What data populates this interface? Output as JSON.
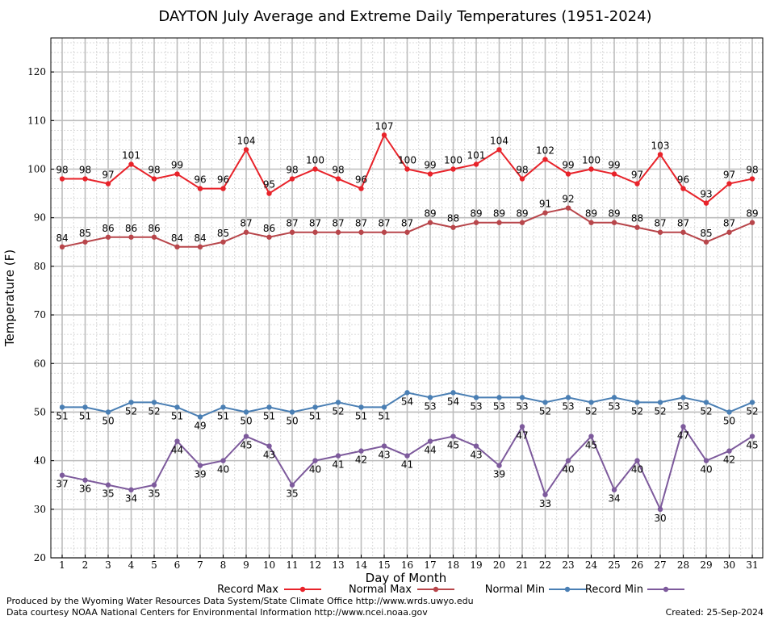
{
  "chart_data": {
    "type": "line",
    "title": "DAYTON July Average and Extreme Daily Temperatures (1951-2024)",
    "xlabel": "Day of Month",
    "ylabel": "Temperature (F)",
    "x": [
      1,
      2,
      3,
      4,
      5,
      6,
      7,
      8,
      9,
      10,
      11,
      12,
      13,
      14,
      15,
      16,
      17,
      18,
      19,
      20,
      21,
      22,
      23,
      24,
      25,
      26,
      27,
      28,
      29,
      30,
      31
    ],
    "x_ticks": [
      "1",
      "2",
      "3",
      "4",
      "5",
      "6",
      "7",
      "8",
      "9",
      "10",
      "11",
      "12",
      "13",
      "14",
      "15",
      "16",
      "17",
      "18",
      "19",
      "20",
      "21",
      "22",
      "23",
      "24",
      "25",
      "26",
      "27",
      "28",
      "29",
      "30",
      "31"
    ],
    "ylim": [
      20,
      127
    ],
    "y_ticks": [
      "20",
      "30",
      "40",
      "50",
      "60",
      "70",
      "80",
      "90",
      "100",
      "110",
      "120"
    ],
    "grid": true,
    "legend_position": "bottom",
    "series": [
      {
        "name": "Record Max",
        "color": "#e8232a",
        "label_position": "above",
        "values": [
          98,
          98,
          97,
          101,
          98,
          99,
          96,
          96,
          104,
          95,
          98,
          100,
          98,
          96,
          107,
          100,
          99,
          100,
          101,
          104,
          98,
          102,
          99,
          100,
          99,
          97,
          103,
          96,
          93,
          97,
          98
        ]
      },
      {
        "name": "Normal Max",
        "color": "#b8464b",
        "label_position": "above",
        "values": [
          84,
          85,
          86,
          86,
          86,
          84,
          84,
          85,
          87,
          86,
          87,
          87,
          87,
          87,
          87,
          87,
          89,
          88,
          89,
          89,
          89,
          91,
          92,
          89,
          89,
          88,
          87,
          87,
          85,
          87,
          89
        ]
      },
      {
        "name": "Normal Min",
        "color": "#4a7fb4",
        "label_position": "below",
        "values": [
          51,
          51,
          50,
          52,
          52,
          51,
          49,
          51,
          50,
          51,
          50,
          51,
          52,
          51,
          51,
          54,
          53,
          54,
          53,
          53,
          53,
          52,
          53,
          52,
          53,
          52,
          52,
          53,
          52,
          50,
          52
        ]
      },
      {
        "name": "Record Min",
        "color": "#7d5a9c",
        "label_position": "below",
        "values": [
          37,
          36,
          35,
          34,
          35,
          44,
          39,
          40,
          45,
          43,
          35,
          40,
          41,
          42,
          43,
          41,
          44,
          45,
          43,
          39,
          47,
          33,
          40,
          45,
          34,
          40,
          30,
          47,
          40,
          42,
          45
        ]
      }
    ]
  },
  "footer": {
    "produced_by": "Produced by the Wyoming Water Resources Data System/State Climate Office http://www.wrds.uwyo.edu",
    "data_courtesy": "Data courtesy NOAA National Centers for Environmental Information http://www.ncei.noaa.gov",
    "created": "Created:  25-Sep-2024"
  }
}
